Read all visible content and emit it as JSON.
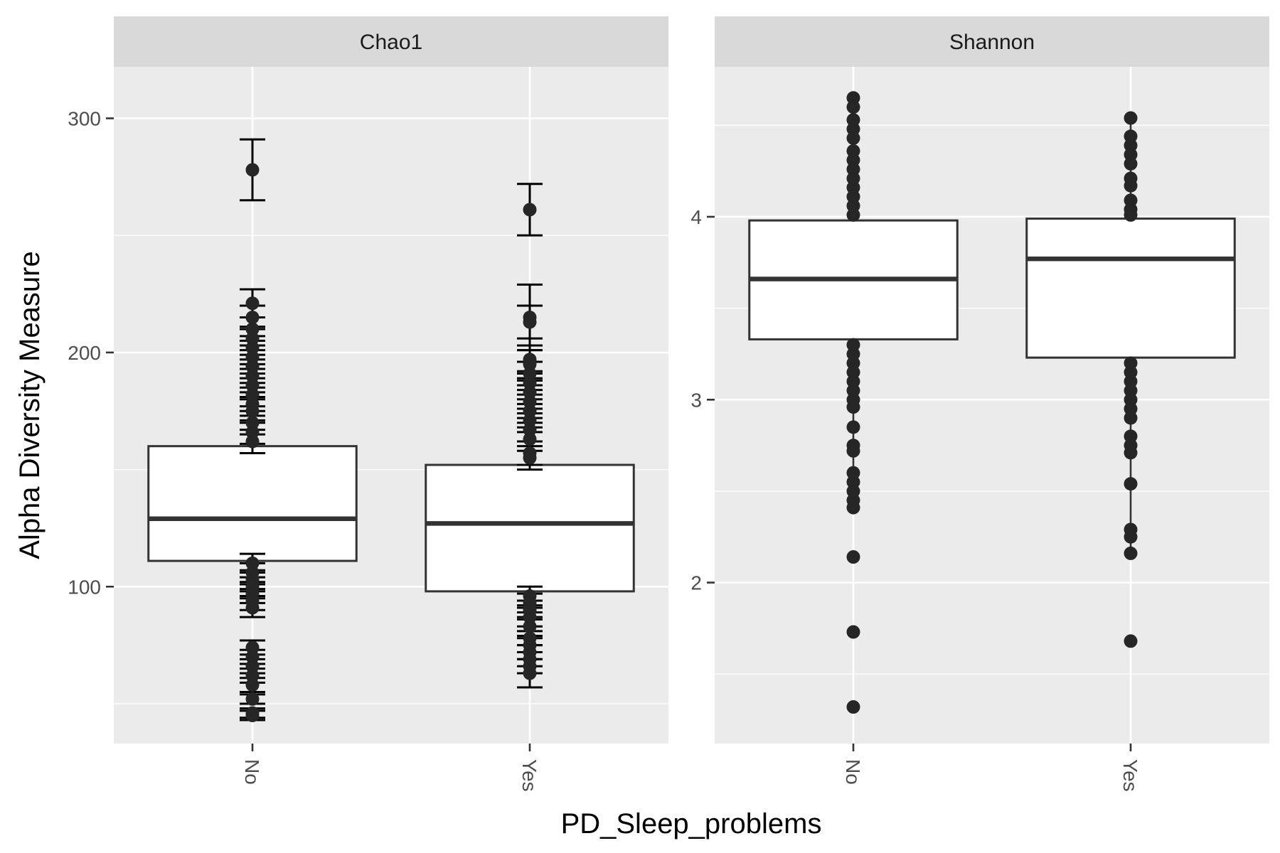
{
  "chart_data": {
    "type": "boxplot",
    "xlabel": "PD_Sleep_problems",
    "ylabel": "Alpha Diversity Measure",
    "categories": [
      "No",
      "Yes"
    ],
    "grid": true,
    "legend": "none",
    "panels": [
      {
        "title": "Chao1",
        "ylim": [
          33,
          322
        ],
        "yticks": [
          100,
          200,
          300
        ],
        "ytick_labels": [
          "100",
          "200",
          "300"
        ],
        "boxes": [
          {
            "category": "No",
            "q1": 111,
            "median": 129,
            "q3": 160,
            "whisker_low": 92,
            "whisker_high": 162
          },
          {
            "category": "Yes",
            "q1": 98,
            "median": 127,
            "q3": 152,
            "whisker_low": 91,
            "whisker_high": 154
          }
        ],
        "points": [
          {
            "category": "No",
            "values": [
              278,
              221,
              215,
              210,
              206,
              202,
              198,
              194,
              190,
              186,
              182,
              178,
              175,
              170,
              166,
              162,
              110,
              106,
              103,
              100,
              97,
              94,
              91,
              74,
              70,
              66,
              62,
              58,
              52,
              46,
              45
            ]
          },
          {
            "category": "Yes",
            "values": [
              261,
              215,
              213,
              197,
              195,
              191,
              187,
              183,
              179,
              175,
              171,
              167,
              163,
              157,
              155,
              96,
              93,
              90,
              87,
              83,
              78,
              75,
              72,
              69,
              66,
              63
            ]
          }
        ],
        "error_bars": [
          {
            "category": "No",
            "values": [
              278,
              221,
              215,
              210,
              206,
              202,
              198,
              194,
              190,
              186,
              182,
              178,
              175,
              170,
              166,
              162,
              110,
              106,
              103,
              100,
              97,
              94,
              91,
              74,
              70,
              66,
              62,
              58,
              52,
              46,
              45
            ],
            "half_widths": [
              13,
              6,
              5,
              5,
              5,
              5,
              5,
              5,
              5,
              5,
              5,
              5,
              5,
              5,
              5,
              5,
              4,
              4,
              4,
              4,
              4,
              4,
              4,
              3,
              3,
              3,
              3,
              3,
              2,
              2,
              2
            ]
          },
          {
            "category": "Yes",
            "values": [
              261,
              215,
              213,
              197,
              195,
              191,
              187,
              183,
              179,
              175,
              171,
              167,
              163,
              157,
              155,
              96,
              93,
              90,
              87,
              83,
              78,
              75,
              72,
              69,
              66,
              63
            ],
            "half_widths": [
              11,
              14,
              7,
              6,
              6,
              5,
              5,
              5,
              5,
              5,
              5,
              5,
              5,
              5,
              5,
              4,
              4,
              4,
              4,
              4,
              3,
              3,
              3,
              3,
              3,
              6
            ]
          }
        ]
      },
      {
        "title": "Shannon",
        "ylim": [
          1.12,
          4.82
        ],
        "yticks": [
          2,
          3,
          4
        ],
        "ytick_labels": [
          "2",
          "3",
          "4"
        ],
        "boxes": [
          {
            "category": "No",
            "q1": 3.33,
            "median": 3.66,
            "q3": 3.98,
            "whisker_low": 2.39,
            "whisker_high": 4.65
          },
          {
            "category": "Yes",
            "q1": 3.23,
            "median": 3.77,
            "q3": 3.99,
            "whisker_low": 2.16,
            "whisker_high": 4.54
          }
        ],
        "points": [
          {
            "category": "No",
            "values": [
              4.65,
              4.6,
              4.53,
              4.48,
              4.43,
              4.36,
              4.31,
              4.26,
              4.21,
              4.16,
              4.11,
              4.06,
              4.01,
              3.3,
              3.25,
              3.2,
              3.15,
              3.1,
              3.05,
              3.0,
              2.96,
              2.85,
              2.75,
              2.72,
              2.6,
              2.55,
              2.5,
              2.45,
              2.41,
              2.14,
              1.73,
              1.32
            ]
          },
          {
            "category": "Yes",
            "values": [
              4.54,
              4.44,
              4.39,
              4.34,
              4.29,
              4.21,
              4.17,
              4.09,
              4.04,
              4.01,
              3.2,
              3.15,
              3.1,
              3.05,
              3.0,
              2.95,
              2.9,
              2.8,
              2.75,
              2.71,
              2.54,
              2.29,
              2.25,
              2.16,
              1.68
            ]
          }
        ]
      }
    ]
  }
}
